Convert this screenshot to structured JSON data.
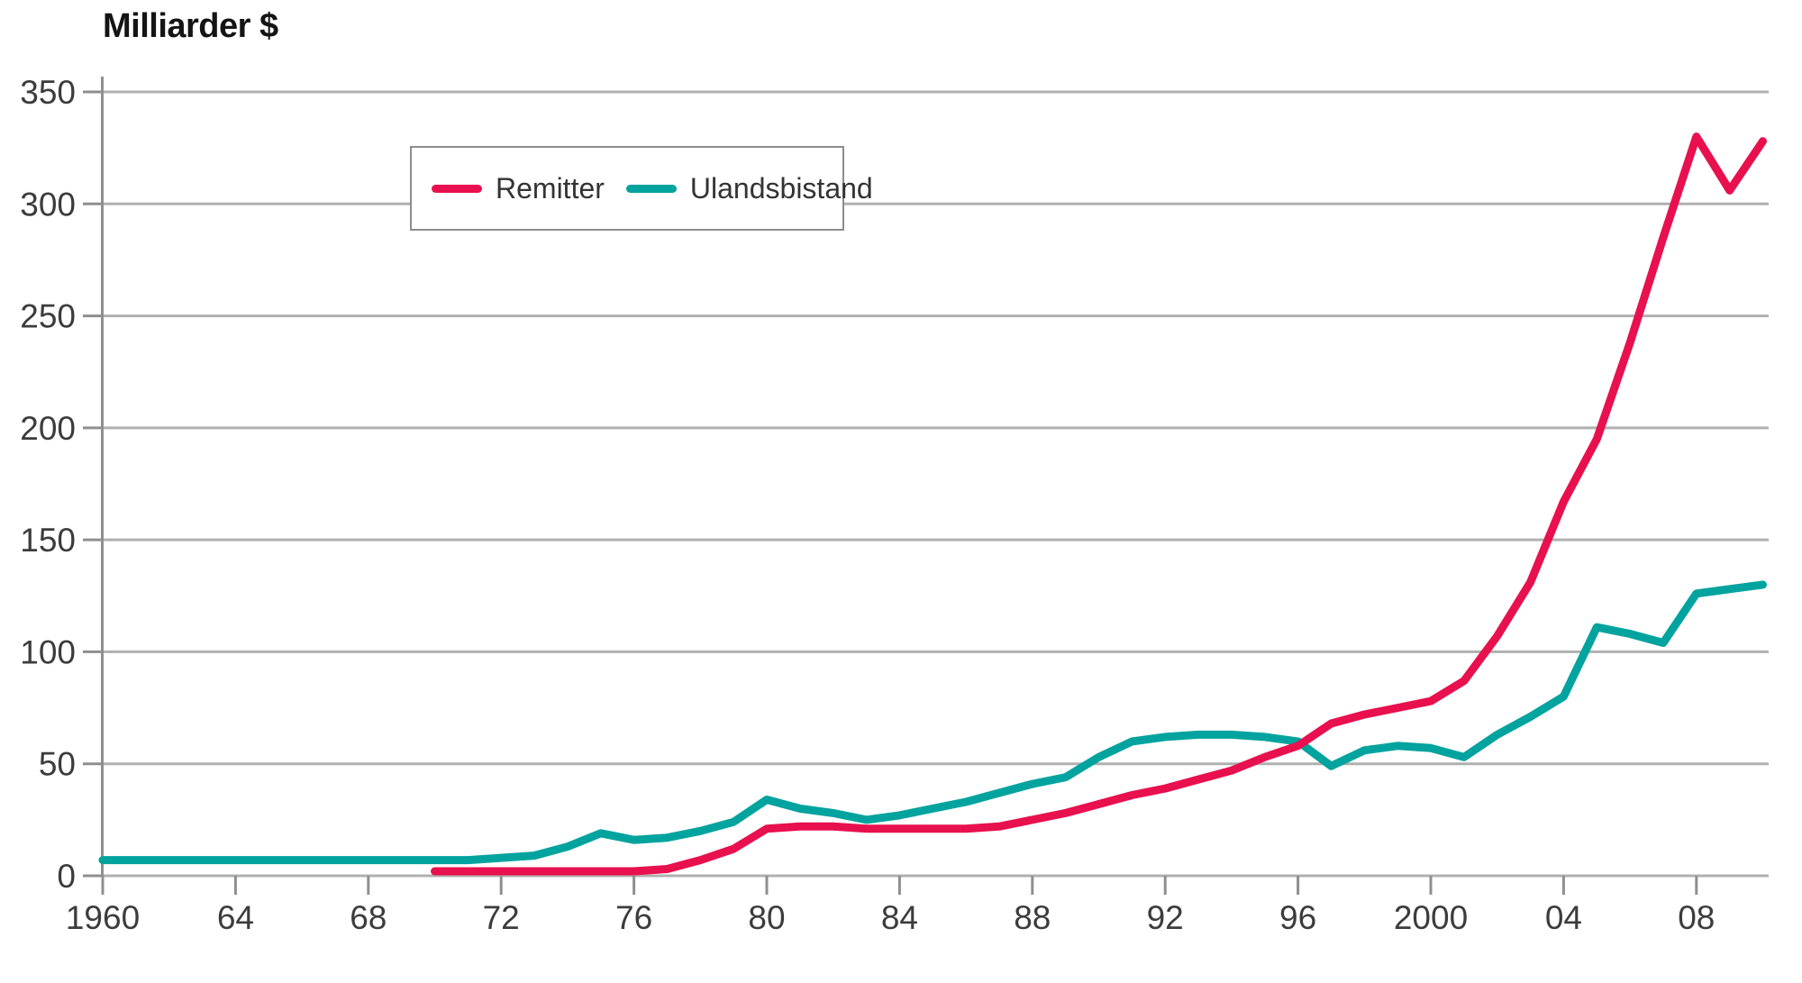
{
  "title": "Milliarder $",
  "legend": {
    "items": [
      {
        "label": "Remitter",
        "color": "#e8104e"
      },
      {
        "label": "Ulandsbistand",
        "color": "#00a39e"
      }
    ]
  },
  "axes": {
    "y_ticks": [
      0,
      50,
      100,
      150,
      200,
      250,
      300,
      350
    ],
    "x_ticks": [
      {
        "year": 1960,
        "label": "1960"
      },
      {
        "year": 1964,
        "label": "64"
      },
      {
        "year": 1968,
        "label": "68"
      },
      {
        "year": 1972,
        "label": "72"
      },
      {
        "year": 1976,
        "label": "76"
      },
      {
        "year": 1980,
        "label": "80"
      },
      {
        "year": 1984,
        "label": "84"
      },
      {
        "year": 1988,
        "label": "88"
      },
      {
        "year": 1992,
        "label": "92"
      },
      {
        "year": 1996,
        "label": "96"
      },
      {
        "year": 2000,
        "label": "2000"
      },
      {
        "year": 2004,
        "label": "04"
      },
      {
        "year": 2008,
        "label": "08"
      }
    ]
  },
  "colors": {
    "background": "#ffffff",
    "gridline": "#b0b0b0",
    "axis": "#8f8f8f",
    "tick_text": "#3c3c3c",
    "remitter": "#e8104e",
    "ulandsbistand": "#00a39e"
  },
  "chart_data": {
    "type": "line",
    "title": "Milliarder $",
    "ylabel": "Milliarder $",
    "xlabel": "",
    "xlim": [
      1960,
      2010.3
    ],
    "ylim": [
      0,
      350
    ],
    "grid": "horizontal",
    "legend_position": "top-left-inside",
    "series": [
      {
        "name": "Remitter",
        "color": "#e8104e",
        "points": [
          [
            1970,
            2
          ],
          [
            1971,
            2
          ],
          [
            1972,
            2
          ],
          [
            1973,
            2
          ],
          [
            1974,
            2
          ],
          [
            1975,
            2
          ],
          [
            1976,
            2
          ],
          [
            1977,
            3
          ],
          [
            1978,
            7
          ],
          [
            1979,
            12
          ],
          [
            1980,
            21
          ],
          [
            1981,
            22
          ],
          [
            1982,
            22
          ],
          [
            1983,
            21
          ],
          [
            1984,
            21
          ],
          [
            1985,
            21
          ],
          [
            1986,
            21
          ],
          [
            1987,
            22
          ],
          [
            1988,
            25
          ],
          [
            1989,
            28
          ],
          [
            1990,
            32
          ],
          [
            1991,
            36
          ],
          [
            1992,
            39
          ],
          [
            1993,
            43
          ],
          [
            1994,
            47
          ],
          [
            1995,
            53
          ],
          [
            1996,
            58
          ],
          [
            1997,
            68
          ],
          [
            1998,
            72
          ],
          [
            1999,
            75
          ],
          [
            2000,
            78
          ],
          [
            2001,
            87
          ],
          [
            2002,
            107
          ],
          [
            2003,
            131
          ],
          [
            2004,
            167
          ],
          [
            2005,
            195
          ],
          [
            2006,
            238
          ],
          [
            2007,
            285
          ],
          [
            2008,
            330
          ],
          [
            2009,
            306
          ],
          [
            2010,
            328
          ]
        ]
      },
      {
        "name": "Ulandsbistand",
        "color": "#00a39e",
        "points": [
          [
            1960,
            7
          ],
          [
            1961,
            7
          ],
          [
            1962,
            7
          ],
          [
            1963,
            7
          ],
          [
            1964,
            7
          ],
          [
            1965,
            7
          ],
          [
            1966,
            7
          ],
          [
            1967,
            7
          ],
          [
            1968,
            7
          ],
          [
            1969,
            7
          ],
          [
            1970,
            7
          ],
          [
            1971,
            7
          ],
          [
            1972,
            8
          ],
          [
            1973,
            9
          ],
          [
            1974,
            13
          ],
          [
            1975,
            19
          ],
          [
            1976,
            16
          ],
          [
            1977,
            17
          ],
          [
            1978,
            20
          ],
          [
            1979,
            24
          ],
          [
            1980,
            34
          ],
          [
            1981,
            30
          ],
          [
            1982,
            28
          ],
          [
            1983,
            25
          ],
          [
            1984,
            27
          ],
          [
            1985,
            30
          ],
          [
            1986,
            33
          ],
          [
            1987,
            37
          ],
          [
            1988,
            41
          ],
          [
            1989,
            44
          ],
          [
            1990,
            53
          ],
          [
            1991,
            60
          ],
          [
            1992,
            62
          ],
          [
            1993,
            63
          ],
          [
            1994,
            63
          ],
          [
            1995,
            62
          ],
          [
            1996,
            60
          ],
          [
            1997,
            49
          ],
          [
            1998,
            56
          ],
          [
            1999,
            58
          ],
          [
            2000,
            57
          ],
          [
            2001,
            53
          ],
          [
            2002,
            63
          ],
          [
            2003,
            71
          ],
          [
            2004,
            80
          ],
          [
            2005,
            111
          ],
          [
            2006,
            108
          ],
          [
            2007,
            104
          ],
          [
            2008,
            126
          ],
          [
            2009,
            128
          ],
          [
            2010,
            130
          ]
        ]
      }
    ]
  }
}
